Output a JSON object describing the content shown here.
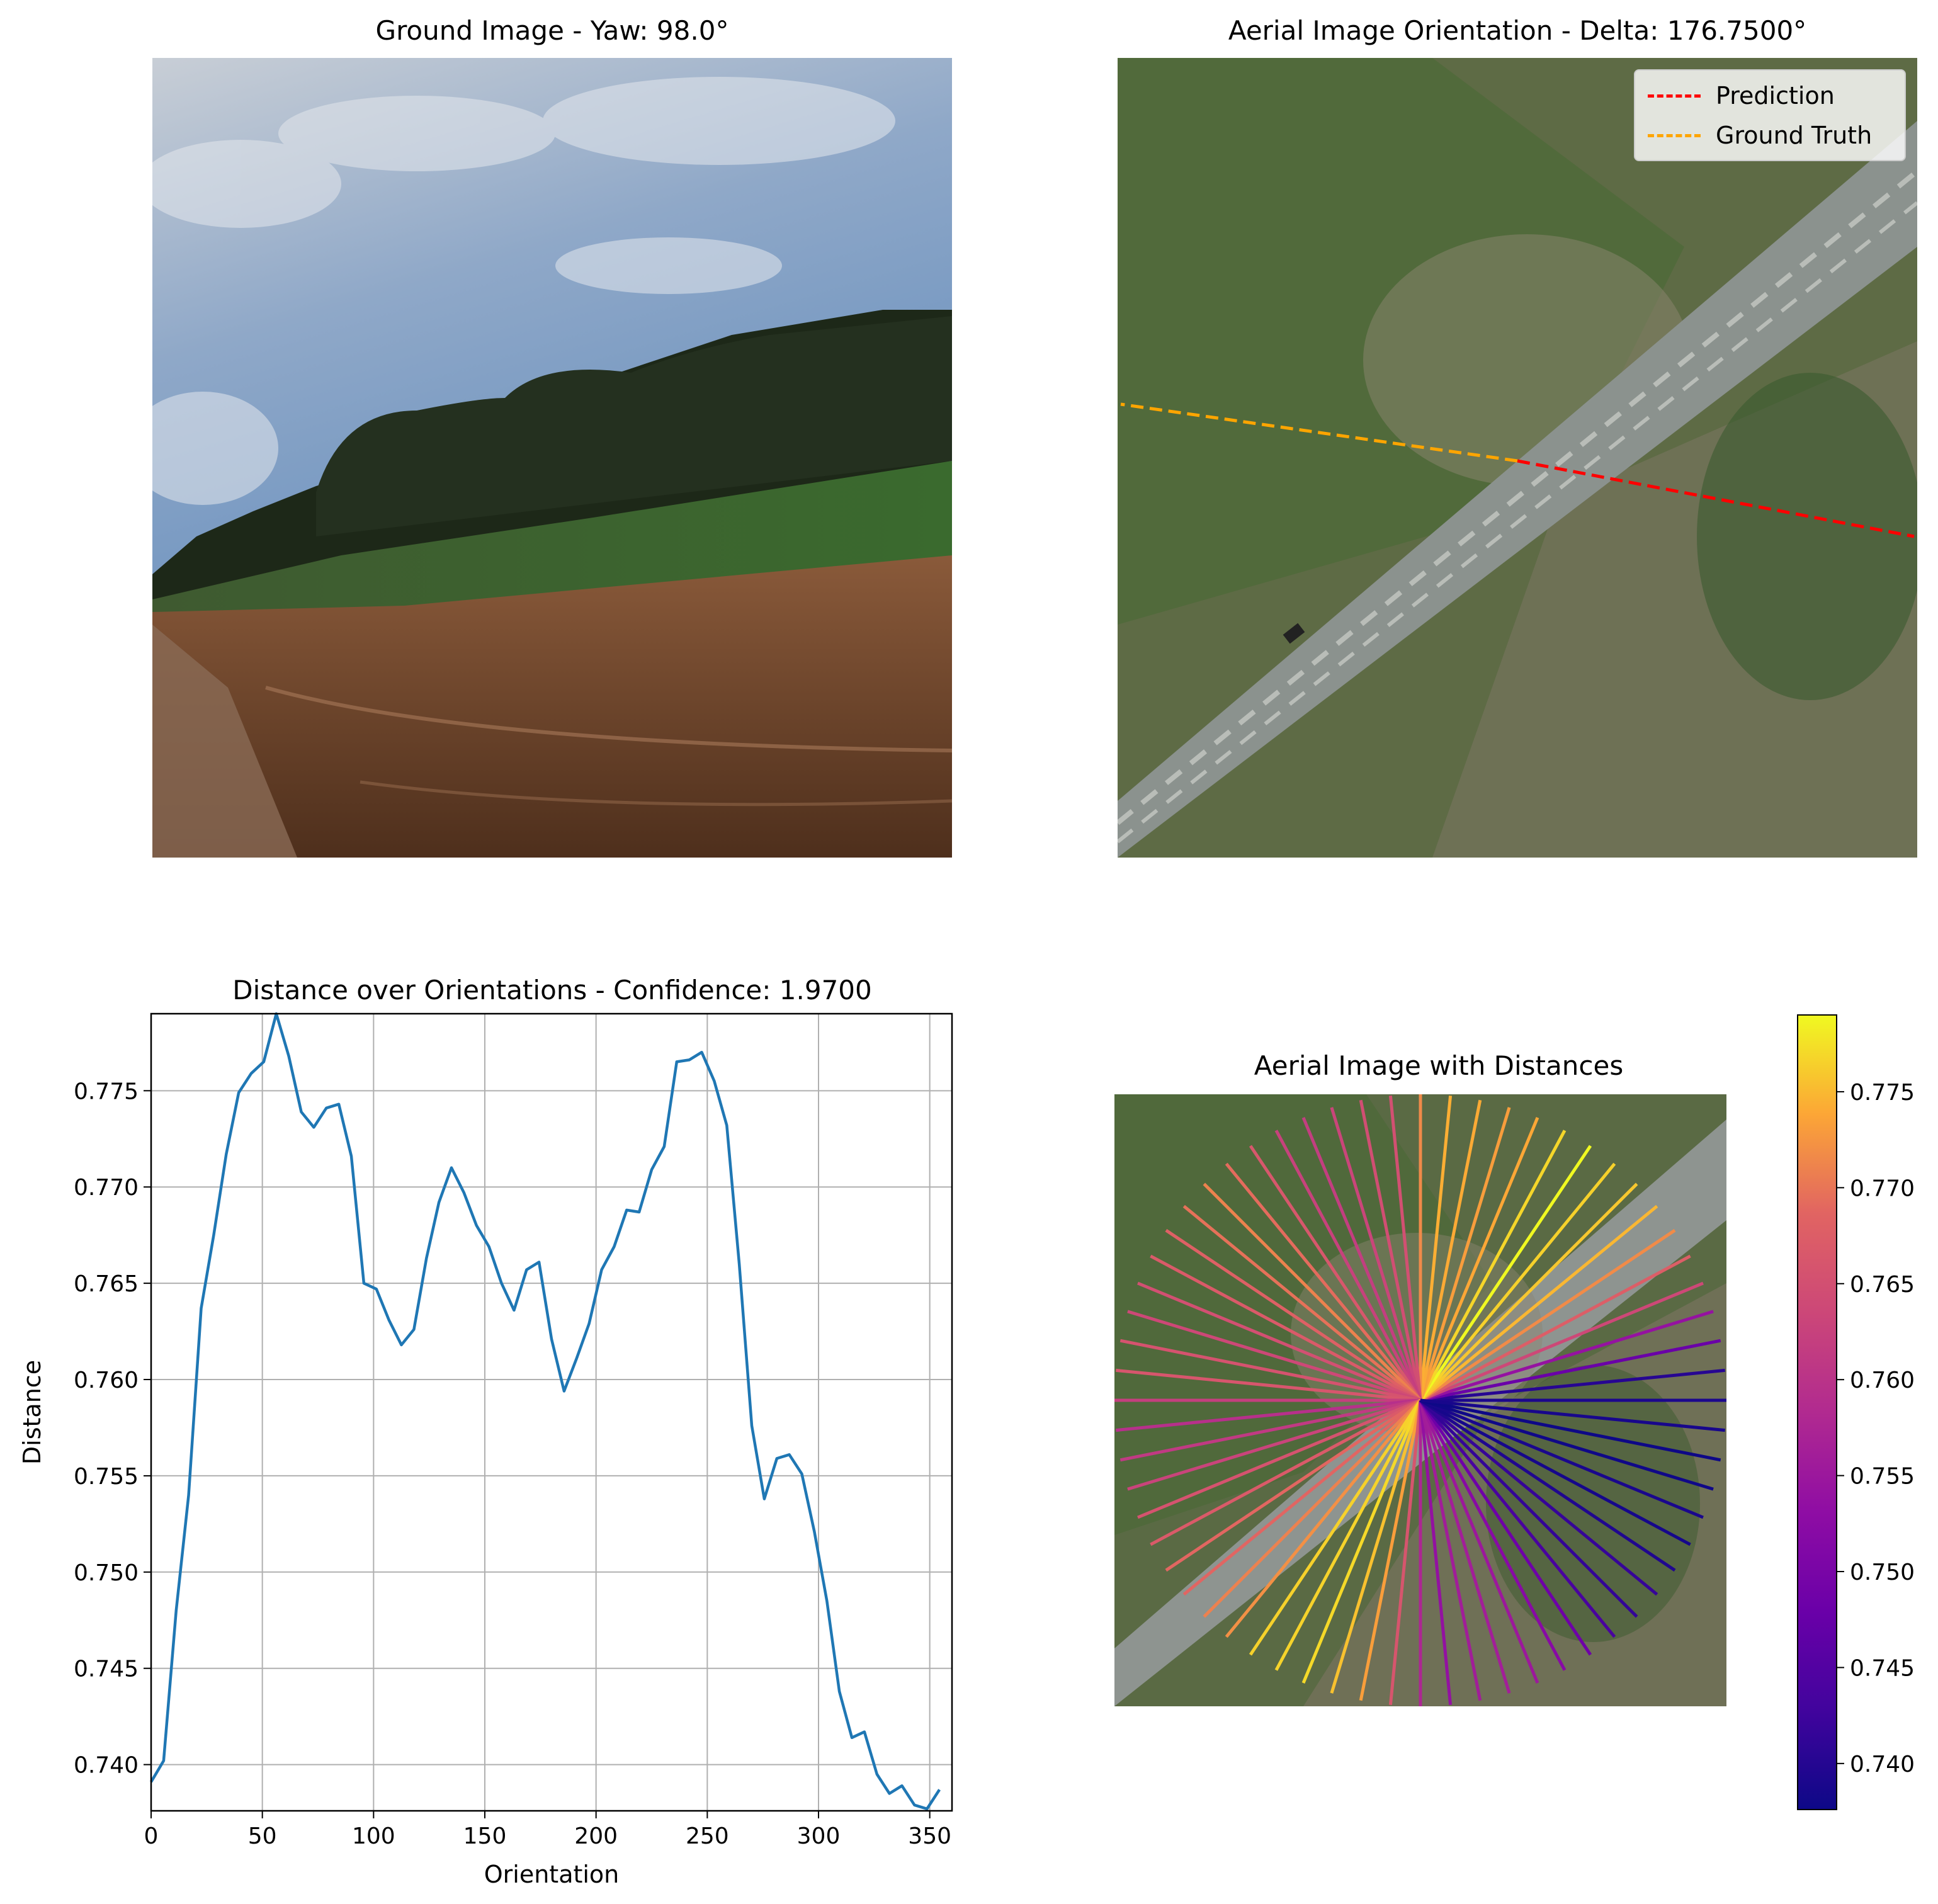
{
  "titles": {
    "ground": "Ground Image - Yaw: 98.0°",
    "aerial": "Aerial Image Orientation - Delta: 176.7500°",
    "distance_plot": "Distance over Orientations - Confidence: 1.9700",
    "aerial_distances": "Aerial Image with Distances"
  },
  "legend": {
    "prediction": {
      "label": "Prediction",
      "color": "#ff0000"
    },
    "ground_truth": {
      "label": "Ground Truth",
      "color": "#ffa500"
    }
  },
  "chart_data": [
    {
      "type": "line",
      "title": "Distance over Orientations - Confidence: 1.9700",
      "xlabel": "Orientation",
      "ylabel": "Distance",
      "xlim": [
        0,
        360
      ],
      "ylim": [
        0.7376,
        0.779
      ],
      "xticks": [
        "0",
        "50",
        "100",
        "150",
        "200",
        "250",
        "300",
        "350"
      ],
      "yticks": [
        "0.740",
        "0.745",
        "0.750",
        "0.755",
        "0.760",
        "0.765",
        "0.770",
        "0.775"
      ],
      "grid": true,
      "line_color": "#1f77b4",
      "x": [
        0,
        5.625,
        11.25,
        16.875,
        22.5,
        28.125,
        33.75,
        39.375,
        45,
        50.625,
        56.25,
        61.875,
        67.5,
        73.125,
        78.75,
        84.375,
        90,
        95.625,
        101.25,
        106.875,
        112.5,
        118.125,
        123.75,
        129.375,
        135,
        140.625,
        146.25,
        151.875,
        157.5,
        163.125,
        168.75,
        174.375,
        180,
        185.625,
        191.25,
        196.875,
        202.5,
        208.125,
        213.75,
        219.375,
        225,
        230.625,
        236.25,
        241.875,
        247.5,
        253.125,
        258.75,
        264.375,
        270,
        275.625,
        281.25,
        286.875,
        292.5,
        298.125,
        303.75,
        309.375,
        315,
        320.625,
        326.25,
        331.875,
        337.5,
        343.125,
        348.75,
        354.375
      ],
      "y": [
        0.7391,
        0.7402,
        0.748,
        0.754,
        0.7637,
        0.7675,
        0.7717,
        0.7749,
        0.7759,
        0.7765,
        0.779,
        0.7768,
        0.7739,
        0.7731,
        0.7741,
        0.7743,
        0.7716,
        0.765,
        0.7647,
        0.7631,
        0.7618,
        0.7626,
        0.7663,
        0.7692,
        0.771,
        0.7697,
        0.768,
        0.7669,
        0.765,
        0.7636,
        0.7657,
        0.7661,
        0.7621,
        0.7594,
        0.7611,
        0.7629,
        0.7657,
        0.7669,
        0.7688,
        0.7687,
        0.7709,
        0.7721,
        0.7765,
        0.7766,
        0.777,
        0.7755,
        0.7732,
        0.766,
        0.7576,
        0.7538,
        0.7559,
        0.7561,
        0.7551,
        0.7521,
        0.7485,
        0.7438,
        0.7414,
        0.7417,
        0.7395,
        0.7385,
        0.7389,
        0.7379,
        0.7377,
        0.7387
      ]
    },
    {
      "type": "polar-lines",
      "title": "Aerial Image with Distances",
      "colormap": "plasma",
      "colorbar_range": [
        0.7376,
        0.779
      ],
      "colorbar_ticks": [
        "0.740",
        "0.745",
        "0.750",
        "0.755",
        "0.760",
        "0.765",
        "0.770",
        "0.775"
      ]
    },
    {
      "type": "orientation-lines",
      "title": "Aerial Image Orientation - Delta: 176.7500°",
      "series": [
        {
          "name": "Prediction",
          "color": "#ff0000"
        },
        {
          "name": "Ground Truth",
          "color": "#ffa500"
        }
      ]
    }
  ]
}
